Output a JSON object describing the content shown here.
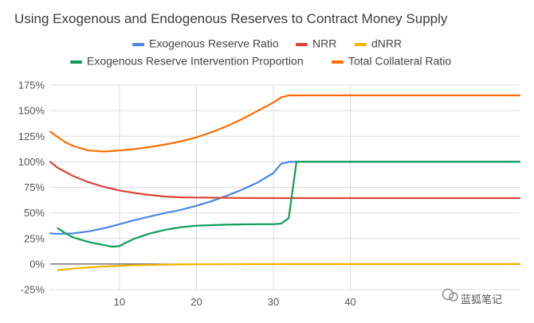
{
  "chart_data": {
    "type": "line",
    "title": "Using Exogenous and Endogenous Reserves to Contract Money Supply",
    "xlim": [
      1,
      62
    ],
    "ylim": [
      -25,
      175
    ],
    "x_ticks": [
      10,
      20,
      30,
      40
    ],
    "y_ticks": [
      -25,
      0,
      25,
      50,
      75,
      100,
      125,
      150,
      175
    ],
    "y_unit": "%",
    "grid": true,
    "legend_position": "top",
    "series": [
      {
        "name": "Exogenous Reserve Ratio",
        "color": "#4a86e8",
        "x": [
          1,
          2,
          4,
          6,
          8,
          10,
          12,
          14,
          16,
          18,
          20,
          22,
          24,
          26,
          28,
          30,
          31,
          32,
          33,
          62
        ],
        "y": [
          30,
          29.5,
          30,
          32,
          35,
          39,
          43,
          46.5,
          50,
          53,
          57,
          61.5,
          67,
          73,
          80,
          89,
          98,
          100,
          100,
          100
        ]
      },
      {
        "name": "NRR",
        "color": "#db4437",
        "x": [
          1,
          2,
          4,
          6,
          8,
          10,
          12,
          14,
          16,
          18,
          20,
          24,
          28,
          62
        ],
        "y": [
          100,
          94,
          86,
          80,
          75.5,
          72,
          69.5,
          67.5,
          66,
          65.3,
          65,
          64.7,
          64.5,
          64.5
        ]
      },
      {
        "name": "dNRR",
        "color": "#f4b400",
        "x": [
          2,
          4,
          6,
          8,
          10,
          12,
          15,
          18,
          22,
          26,
          30,
          62
        ],
        "y": [
          -6,
          -4.5,
          -3.3,
          -2.4,
          -1.7,
          -1.2,
          -0.7,
          -0.4,
          -0.2,
          -0.1,
          0,
          0
        ]
      },
      {
        "name": "Exogenous Reserve Intervention Proportion",
        "color": "#0f9d58",
        "x": [
          2,
          3,
          4,
          6,
          8,
          9,
          10,
          11,
          12,
          14,
          16,
          18,
          20,
          22,
          24,
          26,
          28,
          30,
          31,
          32,
          33,
          62
        ],
        "y": [
          35,
          30,
          26,
          21.5,
          18.5,
          17,
          17.5,
          21.5,
          25,
          30,
          33.5,
          36,
          37.5,
          38,
          38.5,
          38.8,
          39,
          39,
          39.5,
          45,
          100,
          100
        ]
      },
      {
        "name": "Total Collateral Ratio",
        "color": "#ff6d01",
        "x": [
          1,
          2,
          3,
          4,
          6,
          8,
          10,
          12,
          14,
          16,
          18,
          20,
          22,
          24,
          26,
          28,
          30,
          31,
          32,
          33,
          62
        ],
        "y": [
          129.5,
          124,
          119,
          115.5,
          111,
          110,
          111,
          112.5,
          114.5,
          117,
          120,
          124,
          129,
          135,
          142,
          150,
          158,
          163,
          165,
          165,
          165
        ]
      }
    ]
  },
  "watermark": {
    "text": "蓝狐笔记"
  }
}
